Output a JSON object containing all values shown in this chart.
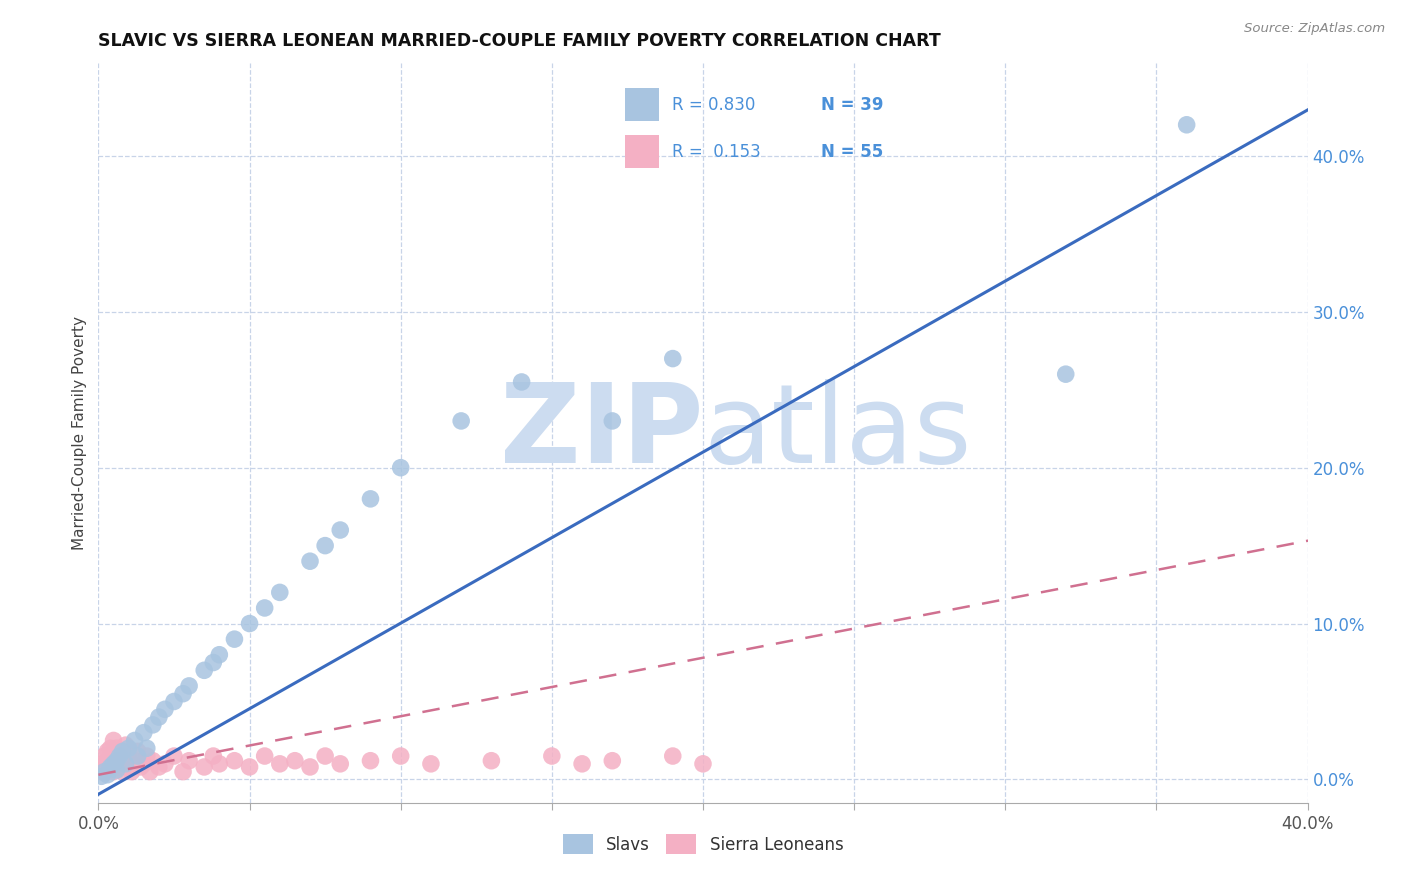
{
  "title": "SLAVIC VS SIERRA LEONEAN MARRIED-COUPLE FAMILY POVERTY CORRELATION CHART",
  "source": "Source: ZipAtlas.com",
  "ylabel": "Married-Couple Family Poverty",
  "xmin": 0.0,
  "xmax": 0.4,
  "ymin": -0.015,
  "ymax": 0.46,
  "slavs_R": 0.83,
  "slavs_N": 39,
  "sierra_R": 0.153,
  "sierra_N": 55,
  "slavs_color": "#a8c4e0",
  "slavs_line_color": "#3a6bbf",
  "sierra_color": "#f4b0c4",
  "sierra_line_color": "#d07090",
  "watermark_color": "#ccdcf0",
  "background_color": "#ffffff",
  "grid_color": "#c8d4e8",
  "right_axis_label_color": "#4a90d9",
  "slavs_x": [
    0.001,
    0.002,
    0.003,
    0.004,
    0.005,
    0.006,
    0.006,
    0.007,
    0.008,
    0.009,
    0.01,
    0.012,
    0.013,
    0.015,
    0.016,
    0.018,
    0.02,
    0.022,
    0.025,
    0.028,
    0.03,
    0.035,
    0.038,
    0.04,
    0.045,
    0.05,
    0.055,
    0.06,
    0.07,
    0.075,
    0.08,
    0.09,
    0.1,
    0.12,
    0.14,
    0.17,
    0.19,
    0.32,
    0.36
  ],
  "slavs_y": [
    0.002,
    0.005,
    0.003,
    0.008,
    0.01,
    0.006,
    0.012,
    0.015,
    0.018,
    0.01,
    0.02,
    0.025,
    0.015,
    0.03,
    0.02,
    0.035,
    0.04,
    0.045,
    0.05,
    0.055,
    0.06,
    0.07,
    0.075,
    0.08,
    0.09,
    0.1,
    0.11,
    0.12,
    0.14,
    0.15,
    0.16,
    0.18,
    0.2,
    0.23,
    0.255,
    0.23,
    0.27,
    0.26,
    0.42
  ],
  "sierra_x": [
    0.001,
    0.001,
    0.002,
    0.002,
    0.003,
    0.003,
    0.003,
    0.004,
    0.004,
    0.005,
    0.005,
    0.005,
    0.006,
    0.006,
    0.007,
    0.007,
    0.008,
    0.008,
    0.009,
    0.009,
    0.01,
    0.01,
    0.011,
    0.012,
    0.013,
    0.014,
    0.015,
    0.016,
    0.017,
    0.018,
    0.02,
    0.022,
    0.025,
    0.028,
    0.03,
    0.035,
    0.038,
    0.04,
    0.045,
    0.05,
    0.055,
    0.06,
    0.065,
    0.07,
    0.075,
    0.08,
    0.09,
    0.1,
    0.11,
    0.13,
    0.15,
    0.16,
    0.17,
    0.19,
    0.2
  ],
  "sierra_y": [
    0.005,
    0.01,
    0.008,
    0.015,
    0.005,
    0.012,
    0.018,
    0.008,
    0.02,
    0.005,
    0.015,
    0.025,
    0.01,
    0.02,
    0.008,
    0.015,
    0.005,
    0.018,
    0.01,
    0.022,
    0.008,
    0.015,
    0.005,
    0.012,
    0.018,
    0.008,
    0.01,
    0.015,
    0.005,
    0.012,
    0.008,
    0.01,
    0.015,
    0.005,
    0.012,
    0.008,
    0.015,
    0.01,
    0.012,
    0.008,
    0.015,
    0.01,
    0.012,
    0.008,
    0.015,
    0.01,
    0.012,
    0.015,
    0.01,
    0.012,
    0.015,
    0.01,
    0.012,
    0.015,
    0.01
  ],
  "slavs_line_x0": -0.005,
  "slavs_line_x1": 0.405,
  "slavs_line_y0": -0.015,
  "slavs_line_y1": 0.435,
  "sierra_line_x0": 0.0,
  "sierra_line_x1": 0.405,
  "sierra_line_y0": 0.003,
  "sierra_line_y1": 0.155,
  "xtick_positions": [
    0.0,
    0.05,
    0.1,
    0.15,
    0.2,
    0.25,
    0.3,
    0.35,
    0.4
  ],
  "ytick_right": [
    0.0,
    0.1,
    0.2,
    0.3,
    0.4
  ]
}
